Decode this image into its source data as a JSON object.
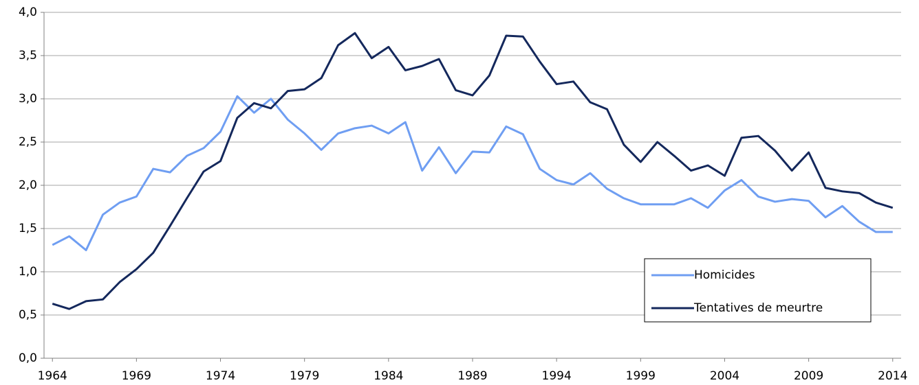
{
  "chart_data": {
    "type": "line",
    "x": [
      1964,
      1965,
      1966,
      1967,
      1968,
      1969,
      1970,
      1971,
      1972,
      1973,
      1974,
      1975,
      1976,
      1977,
      1978,
      1979,
      1980,
      1981,
      1982,
      1983,
      1984,
      1985,
      1986,
      1987,
      1988,
      1989,
      1990,
      1991,
      1992,
      1993,
      1994,
      1995,
      1996,
      1997,
      1998,
      1999,
      2000,
      2001,
      2002,
      2003,
      2004,
      2005,
      2006,
      2007,
      2008,
      2009,
      2010,
      2011,
      2012,
      2013,
      2014
    ],
    "series": [
      {
        "name": "Homicides",
        "color": "#6f9ef2",
        "values": [
          1.31,
          1.41,
          1.25,
          1.66,
          1.8,
          1.87,
          2.19,
          2.15,
          2.34,
          2.43,
          2.62,
          3.03,
          2.84,
          3.0,
          2.76,
          2.6,
          2.41,
          2.6,
          2.66,
          2.69,
          2.6,
          2.73,
          2.17,
          2.44,
          2.14,
          2.39,
          2.38,
          2.68,
          2.59,
          2.19,
          2.06,
          2.01,
          2.14,
          1.96,
          1.85,
          1.78,
          1.78,
          1.78,
          1.85,
          1.74,
          1.94,
          2.06,
          1.87,
          1.81,
          1.84,
          1.82,
          1.63,
          1.76,
          1.58,
          1.46,
          1.46
        ]
      },
      {
        "name": "Tentatives de meurtre",
        "color": "#14285c",
        "values": [
          0.63,
          0.57,
          0.66,
          0.68,
          0.88,
          1.03,
          1.22,
          1.53,
          1.85,
          2.16,
          2.28,
          2.78,
          2.95,
          2.89,
          3.09,
          3.11,
          3.24,
          3.62,
          3.76,
          3.47,
          3.6,
          3.33,
          3.38,
          3.46,
          3.1,
          3.04,
          3.27,
          3.73,
          3.72,
          3.43,
          3.17,
          3.2,
          2.96,
          2.88,
          2.47,
          2.27,
          2.5,
          2.34,
          2.17,
          2.23,
          2.11,
          2.55,
          2.57,
          2.4,
          2.17,
          2.38,
          1.97,
          1.93,
          1.91,
          1.8,
          1.74
        ]
      }
    ],
    "xlim": [
      1963.5,
      2014.5
    ],
    "xticks": [
      1964,
      1969,
      1974,
      1979,
      1984,
      1989,
      1994,
      1999,
      2004,
      2009,
      2014
    ],
    "ylim": [
      0,
      4
    ],
    "yticks": [
      {
        "value": 0,
        "label": "0,0"
      },
      {
        "value": 0.5,
        "label": "0,5"
      },
      {
        "value": 1,
        "label": "1,0"
      },
      {
        "value": 1.5,
        "label": "1,5"
      },
      {
        "value": 2,
        "label": "2,0"
      },
      {
        "value": 2.5,
        "label": "2,5"
      },
      {
        "value": 3,
        "label": "3,0"
      },
      {
        "value": 3.5,
        "label": "3,5"
      },
      {
        "value": 4,
        "label": "4,0"
      }
    ],
    "grid": true,
    "legend": "lower right"
  }
}
